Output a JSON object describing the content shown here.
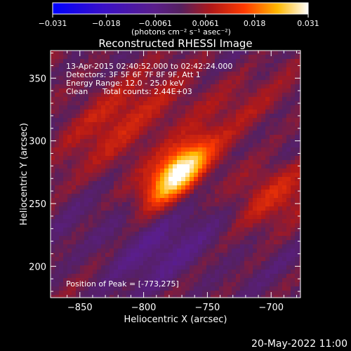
{
  "colorbar": {
    "tick_labels": [
      "-0.031",
      "-0.018",
      "-0.0061",
      "0.0061",
      "0.018",
      "0.031"
    ],
    "units": "(photons cm⁻² s⁻¹ asec⁻²)"
  },
  "image_title": "Reconstructed RHESSI Image",
  "info": {
    "line1": "13-Apr-2015 02:40:52.000 to 02:42:24.000",
    "line2": "Detectors: 3F 5F 6F 7F 8F 9F, Att 1",
    "line3": "Energy Range: 12.0 - 25.0 keV",
    "line4_method": "Clean",
    "line4_counts": "Total counts: 2.44E+03"
  },
  "peak_text": "Position of Peak = [-773,275]",
  "footer_date": "20-May-2022 11:00",
  "chart_data": {
    "type": "heatmap",
    "title": "Reconstructed RHESSI Image",
    "xlabel": "Heliocentric X (arcsec)",
    "ylabel": "Heliocentric Y (arcsec)",
    "xlim": [
      -873,
      -677
    ],
    "ylim": [
      175,
      372
    ],
    "x_ticks": [
      -850,
      -800,
      -750,
      -700
    ],
    "y_ticks": [
      200,
      250,
      300,
      350
    ],
    "x_tick_labels": [
      "−850",
      "−800",
      "−750",
      "−700"
    ],
    "y_tick_labels": [
      "200",
      "250",
      "300",
      "350"
    ],
    "color_range": [
      -0.031,
      0.031
    ],
    "colormap": "rhessi-hot (blue-purple-red-yellow-white)",
    "peak": [
      -773,
      275
    ]
  }
}
